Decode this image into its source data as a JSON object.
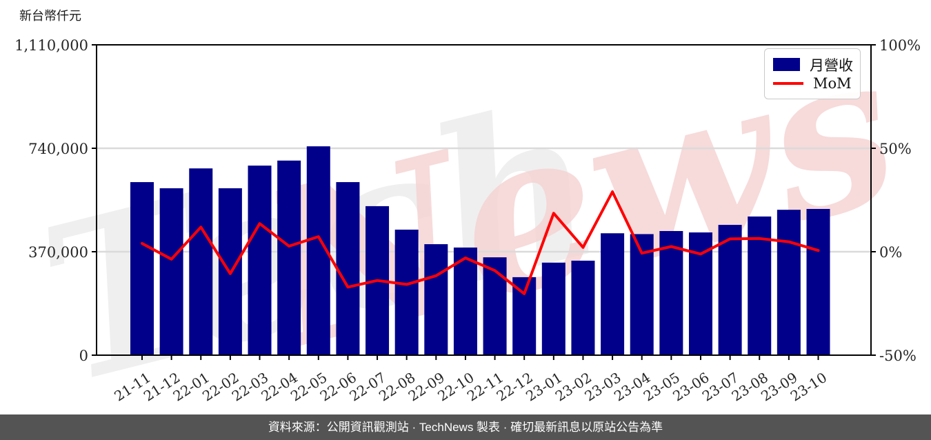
{
  "page": {
    "unit_label": "新台幣仟元",
    "watermark": "TechNews",
    "footer": "資料來源：公開資訊觀測站 · TechNews 製表 · 確切最新訊息以原站公告為準"
  },
  "legend": {
    "bar_label": "月營收",
    "line_label": "MoM"
  },
  "colors": {
    "bar": "#00008B",
    "line": "#FF0000",
    "grid": "#DADADA",
    "axis": "#000000",
    "tick_text": "#262626",
    "footer_bg": "#545454",
    "footer_text": "#FFFFFF",
    "watermark_gray": "#EFEFEF",
    "watermark_pink": "#F6D2D2"
  },
  "chart_data": {
    "type": "bar",
    "title": "",
    "categories": [
      "21-11",
      "21-12",
      "22-01",
      "22-02",
      "22-03",
      "22-04",
      "22-05",
      "22-06",
      "22-07",
      "22-08",
      "22-09",
      "22-10",
      "22-11",
      "22-12",
      "23-01",
      "23-02",
      "23-03",
      "23-04",
      "23-05",
      "23-06",
      "23-07",
      "23-08",
      "23-09",
      "23-10"
    ],
    "series": [
      {
        "name": "月營收",
        "type": "bar",
        "axis": "left",
        "values": [
          619000,
          597000,
          668000,
          597000,
          678000,
          696000,
          747000,
          619000,
          533000,
          449000,
          397000,
          385000,
          350000,
          279000,
          331000,
          338000,
          436000,
          433000,
          444000,
          439000,
          466000,
          496000,
          520000,
          523000
        ]
      },
      {
        "name": "MoM",
        "type": "line",
        "axis": "right",
        "values": [
          4.0,
          -3.6,
          11.9,
          -10.6,
          13.6,
          2.7,
          7.3,
          -17.1,
          -13.9,
          -15.8,
          -11.6,
          -3.0,
          -9.1,
          -20.3,
          18.6,
          2.1,
          29.0,
          -0.7,
          2.5,
          -1.1,
          6.2,
          6.4,
          4.8,
          0.6
        ]
      }
    ],
    "left_axis": {
      "label": "新台幣仟元",
      "lim": [
        0,
        1110000
      ],
      "ticks": [
        0,
        370000,
        740000,
        1110000
      ],
      "tick_labels": [
        "0",
        "370,000",
        "740,000",
        "1,110,000"
      ]
    },
    "right_axis": {
      "lim": [
        -50,
        100
      ],
      "ticks": [
        -50,
        0,
        50,
        100
      ],
      "tick_labels": [
        "-50%",
        "0%",
        "50%",
        "100%"
      ]
    },
    "grid": "horizontal",
    "legend_position": "upper right"
  }
}
